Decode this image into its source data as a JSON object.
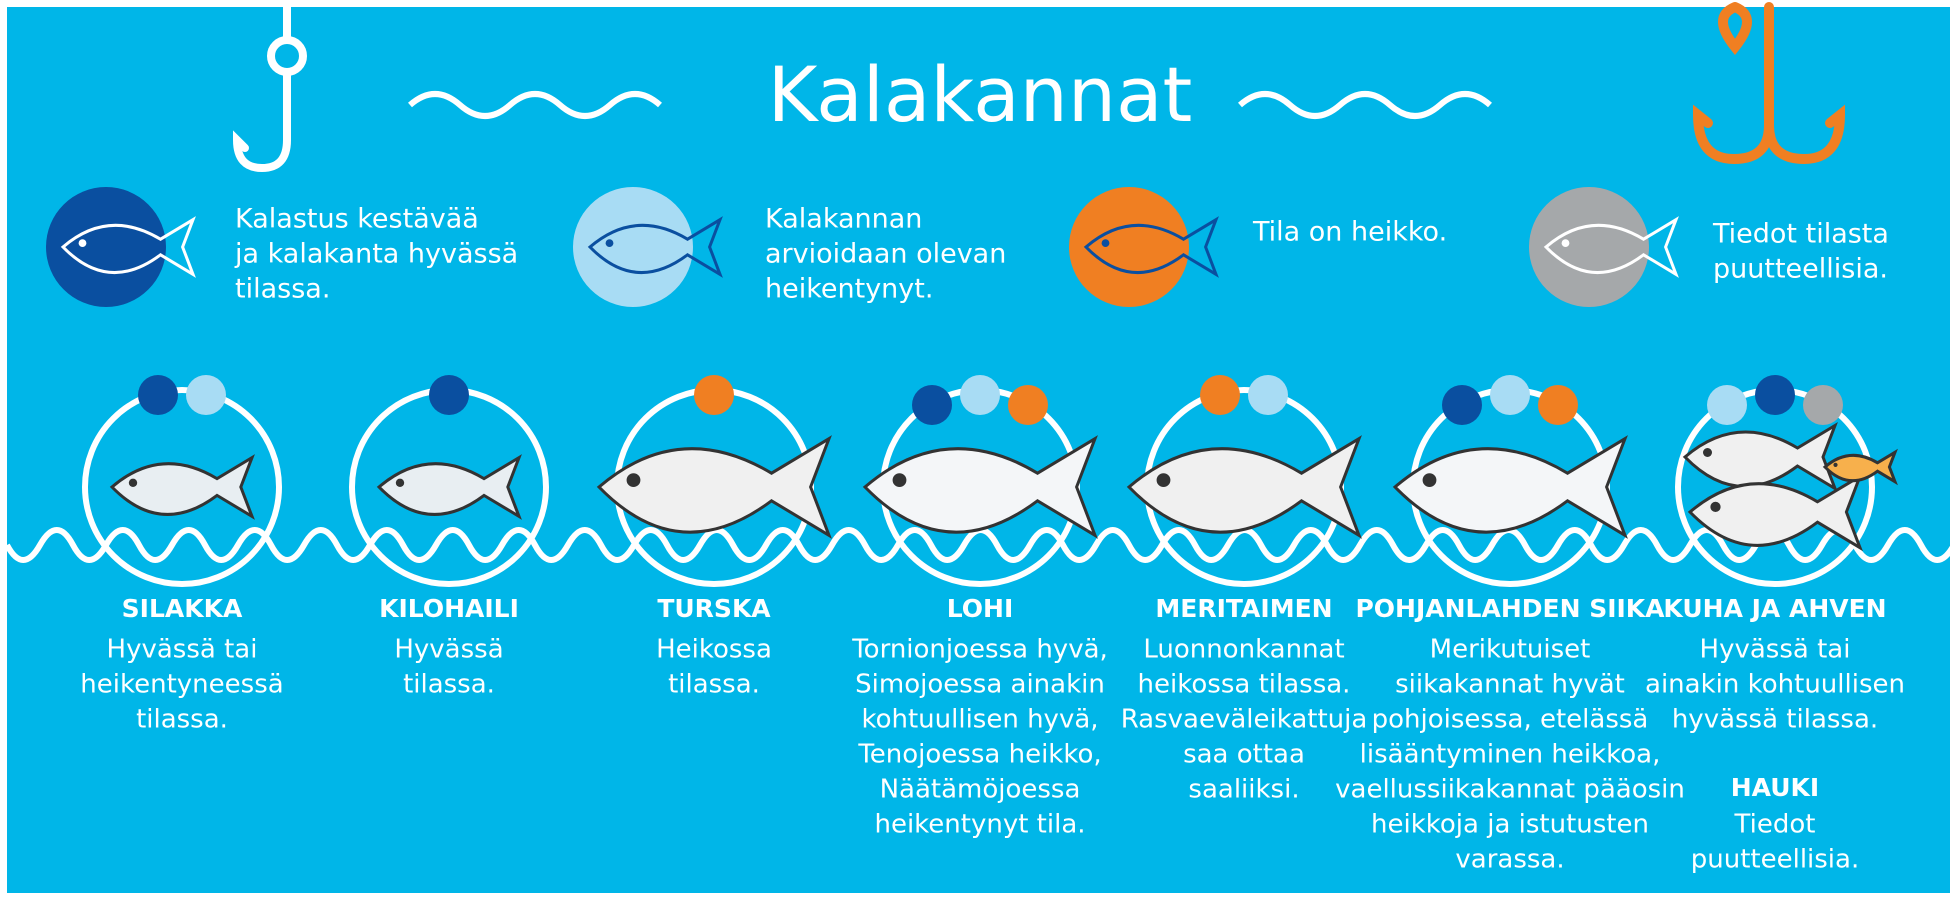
{
  "header": {
    "title": "Kalakannat"
  },
  "legend": [
    {
      "text": [
        "Kalastus kestävää",
        "ja kalakanta hyvässä",
        "tilassa."
      ]
    },
    {
      "text": [
        "Kalakannan",
        "arvioidaan olevan",
        "heikentynyt."
      ]
    },
    {
      "text": [
        "Tila on heikko."
      ]
    },
    {
      "text": [
        "Tiedot tilasta",
        "puutteellisia."
      ]
    }
  ],
  "species": [
    {
      "name": "SILAKKA",
      "text": [
        "Hyvässä tai",
        "heikentyneessä",
        "tilassa."
      ]
    },
    {
      "name": "KILOHAILI",
      "text": [
        "Hyvässä",
        "tilassa."
      ]
    },
    {
      "name": "TURSKA",
      "text": [
        "Heikossa",
        "tilassa."
      ]
    },
    {
      "name": "LOHI",
      "text": [
        "Tornionjoessa hyvä,",
        "Simojoessa ainakin",
        "kohtuullisen hyvä,",
        "Tenojoessa heikko,",
        "Näätämöjoessa",
        "heikentynyt tila."
      ]
    },
    {
      "name": "MERITAIMEN",
      "text": [
        "Luonnonkannat",
        "heikossa tilassa.",
        "Rasvaeväleikattuja",
        "saa ottaa",
        "saaliiksi."
      ]
    },
    {
      "name": "POHJANLAHDEN SIIKA",
      "text": [
        "Merikutuiset",
        "siikakannat hyvät",
        "pohjoisessa,  etelässä",
        "lisääntyminen heikkoa,",
        "vaellussiikakannat pääosin",
        "heikkoja ja istutusten",
        "varassa."
      ]
    },
    {
      "name": "KUHA JA AHVEN",
      "text": [
        "Hyvässä tai",
        "ainakin kohtuullisen",
        "hyvässä tilassa."
      ],
      "extra": {
        "name": "HAUKI",
        "text": [
          "Tiedot",
          "puutteellisia."
        ]
      }
    }
  ]
}
